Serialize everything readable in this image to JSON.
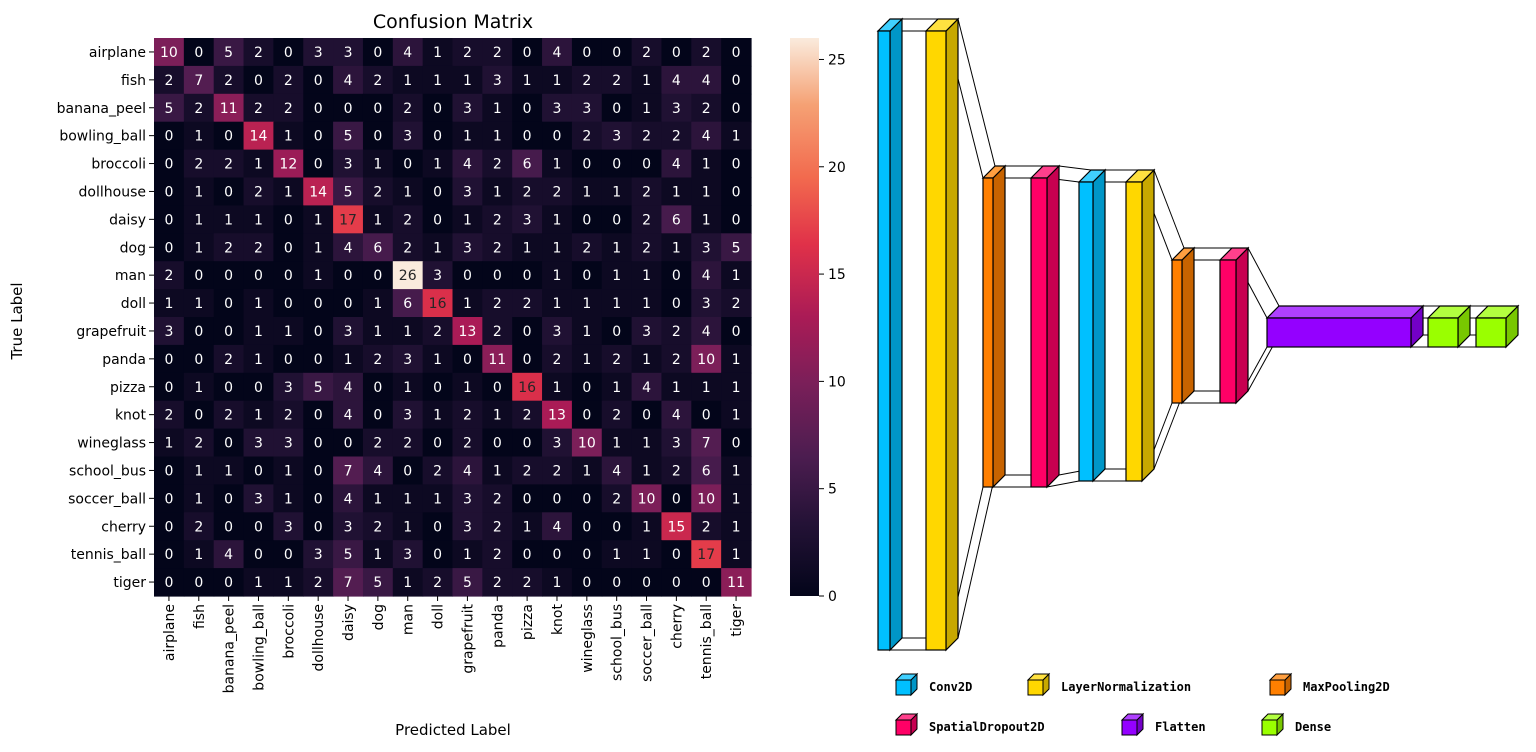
{
  "chart_data": [
    {
      "type": "heatmap",
      "title": "Confusion Matrix",
      "xlabel": "Predicted Label",
      "ylabel": "True Label",
      "labels": [
        "airplane",
        "fish",
        "banana_peel",
        "bowling_ball",
        "broccoli",
        "dollhouse",
        "daisy",
        "dog",
        "man",
        "doll",
        "grapefruit",
        "panda",
        "pizza",
        "knot",
        "wineglass",
        "school_bus",
        "soccer_ball",
        "cherry",
        "tennis_ball",
        "tiger"
      ],
      "matrix": [
        [
          10,
          0,
          5,
          2,
          0,
          3,
          3,
          0,
          4,
          1,
          2,
          2,
          0,
          4,
          0,
          0,
          2,
          0,
          2,
          0
        ],
        [
          2,
          7,
          2,
          0,
          2,
          0,
          4,
          2,
          1,
          1,
          1,
          3,
          1,
          1,
          2,
          2,
          1,
          4,
          4,
          0
        ],
        [
          5,
          2,
          11,
          2,
          2,
          0,
          0,
          0,
          2,
          0,
          3,
          1,
          0,
          3,
          3,
          0,
          1,
          3,
          2,
          0
        ],
        [
          0,
          1,
          0,
          14,
          1,
          0,
          5,
          0,
          3,
          0,
          1,
          1,
          0,
          0,
          2,
          3,
          2,
          2,
          4,
          1
        ],
        [
          0,
          2,
          2,
          1,
          12,
          0,
          3,
          1,
          0,
          1,
          4,
          2,
          6,
          1,
          0,
          0,
          0,
          4,
          1,
          0
        ],
        [
          0,
          1,
          0,
          2,
          1,
          14,
          5,
          2,
          1,
          0,
          3,
          1,
          2,
          2,
          1,
          1,
          2,
          1,
          1,
          0
        ],
        [
          0,
          1,
          1,
          1,
          0,
          1,
          17,
          1,
          2,
          0,
          1,
          2,
          3,
          1,
          0,
          0,
          2,
          6,
          1,
          0
        ],
        [
          0,
          1,
          2,
          2,
          0,
          1,
          4,
          6,
          2,
          1,
          3,
          2,
          1,
          1,
          2,
          1,
          2,
          1,
          3,
          5
        ],
        [
          2,
          0,
          0,
          0,
          0,
          1,
          0,
          0,
          26,
          3,
          0,
          0,
          0,
          1,
          0,
          1,
          1,
          0,
          4,
          1
        ],
        [
          1,
          1,
          0,
          1,
          0,
          0,
          0,
          1,
          6,
          16,
          1,
          2,
          2,
          1,
          1,
          1,
          1,
          0,
          3,
          2
        ],
        [
          3,
          0,
          0,
          1,
          1,
          0,
          3,
          1,
          1,
          2,
          13,
          2,
          0,
          3,
          1,
          0,
          3,
          2,
          4,
          0
        ],
        [
          0,
          0,
          2,
          1,
          0,
          0,
          1,
          2,
          3,
          1,
          0,
          11,
          0,
          2,
          1,
          2,
          1,
          2,
          10,
          1
        ],
        [
          0,
          1,
          0,
          0,
          3,
          5,
          4,
          0,
          1,
          0,
          1,
          0,
          16,
          1,
          0,
          1,
          4,
          1,
          1,
          1
        ],
        [
          2,
          0,
          2,
          1,
          2,
          0,
          4,
          0,
          3,
          1,
          2,
          1,
          2,
          13,
          0,
          2,
          0,
          4,
          0,
          1
        ],
        [
          1,
          2,
          0,
          3,
          3,
          0,
          0,
          2,
          2,
          0,
          2,
          0,
          0,
          3,
          10,
          1,
          1,
          3,
          7,
          0
        ],
        [
          0,
          1,
          1,
          0,
          1,
          0,
          7,
          4,
          0,
          2,
          4,
          1,
          2,
          2,
          1,
          4,
          1,
          2,
          6,
          1
        ],
        [
          0,
          1,
          0,
          3,
          1,
          0,
          4,
          1,
          1,
          1,
          3,
          2,
          0,
          0,
          0,
          2,
          10,
          0,
          10,
          1
        ],
        [
          0,
          2,
          0,
          0,
          3,
          0,
          3,
          2,
          1,
          0,
          3,
          2,
          1,
          4,
          0,
          0,
          1,
          15,
          2,
          1
        ],
        [
          0,
          1,
          4,
          0,
          0,
          3,
          5,
          1,
          3,
          0,
          1,
          2,
          0,
          0,
          0,
          1,
          1,
          0,
          17,
          1
        ],
        [
          0,
          0,
          0,
          1,
          1,
          2,
          7,
          5,
          1,
          2,
          5,
          2,
          2,
          1,
          0,
          0,
          0,
          0,
          0,
          11
        ]
      ],
      "colorbar": {
        "min": 0,
        "max": 26,
        "ticks": [
          0,
          5,
          10,
          15,
          20,
          25
        ]
      }
    },
    {
      "type": "diagram",
      "layers": [
        {
          "kind": "Conv2D",
          "color": "#00c0ff"
        },
        {
          "kind": "LayerNormalization",
          "color": "#ffd700"
        },
        {
          "kind": "MaxPooling2D",
          "color": "#ff7f00"
        },
        {
          "kind": "SpatialDropout2D",
          "color": "#ff0066"
        },
        {
          "kind": "Conv2D",
          "color": "#00c0ff"
        },
        {
          "kind": "LayerNormalization",
          "color": "#ffd700"
        },
        {
          "kind": "MaxPooling2D",
          "color": "#ff7f00"
        },
        {
          "kind": "SpatialDropout2D",
          "color": "#ff0066"
        },
        {
          "kind": "Flatten",
          "color": "#9400ff"
        },
        {
          "kind": "Dense",
          "color": "#9aff00"
        },
        {
          "kind": "Dense",
          "color": "#9aff00"
        }
      ],
      "legend": [
        {
          "label": "Conv2D",
          "color": "#00c0ff"
        },
        {
          "label": "LayerNormalization",
          "color": "#ffd700"
        },
        {
          "label": "MaxPooling2D",
          "color": "#ff7f00"
        },
        {
          "label": "SpatialDropout2D",
          "color": "#ff0066"
        },
        {
          "label": "Flatten",
          "color": "#9400ff"
        },
        {
          "label": "Dense",
          "color": "#9aff00"
        }
      ]
    }
  ]
}
